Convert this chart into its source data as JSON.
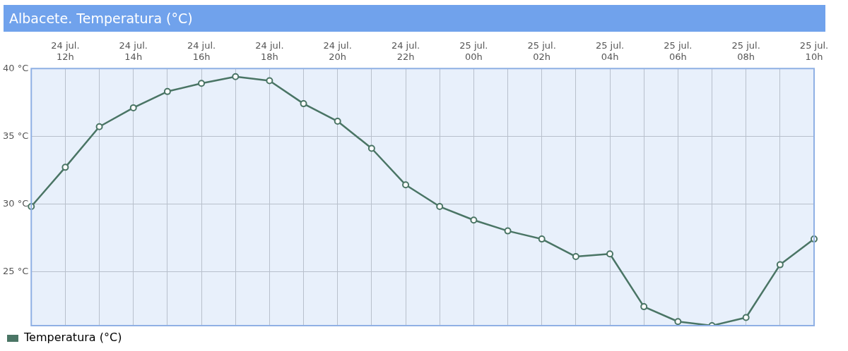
{
  "chart_data": {
    "type": "line",
    "title": "Albacete. Temperatura (°C)",
    "categories": [
      null,
      "24 jul. 12h",
      null,
      "24 jul. 14h",
      null,
      "24 jul. 16h",
      null,
      "24 jul. 18h",
      null,
      "24 jul. 20h",
      null,
      "24 jul. 22h",
      null,
      "25 jul. 00h",
      null,
      "25 jul. 02h",
      null,
      "25 jul. 04h",
      null,
      "25 jul. 06h",
      null,
      "25 jul. 08h",
      null,
      "25 jul. 10h"
    ],
    "series": [
      {
        "name": "Temperatura (°C)",
        "color": "#4a7565",
        "values": [
          29.8,
          32.7,
          35.7,
          37.1,
          38.3,
          38.9,
          39.4,
          39.1,
          37.4,
          36.1,
          34.1,
          31.4,
          29.8,
          28.8,
          28.0,
          27.4,
          26.1,
          26.3,
          22.4,
          21.3,
          21.0,
          21.6,
          25.5,
          27.4
        ]
      }
    ],
    "ylim": [
      21,
      40
    ],
    "yticks": [
      {
        "value": 25,
        "label": "25 °C"
      },
      {
        "value": 30,
        "label": "30 °C"
      },
      {
        "value": 35,
        "label": "35 °C"
      },
      {
        "value": 40,
        "label": "40 °C"
      }
    ],
    "grid": true,
    "legend": "bottom left",
    "marker": "circle",
    "line_style": "solid"
  }
}
